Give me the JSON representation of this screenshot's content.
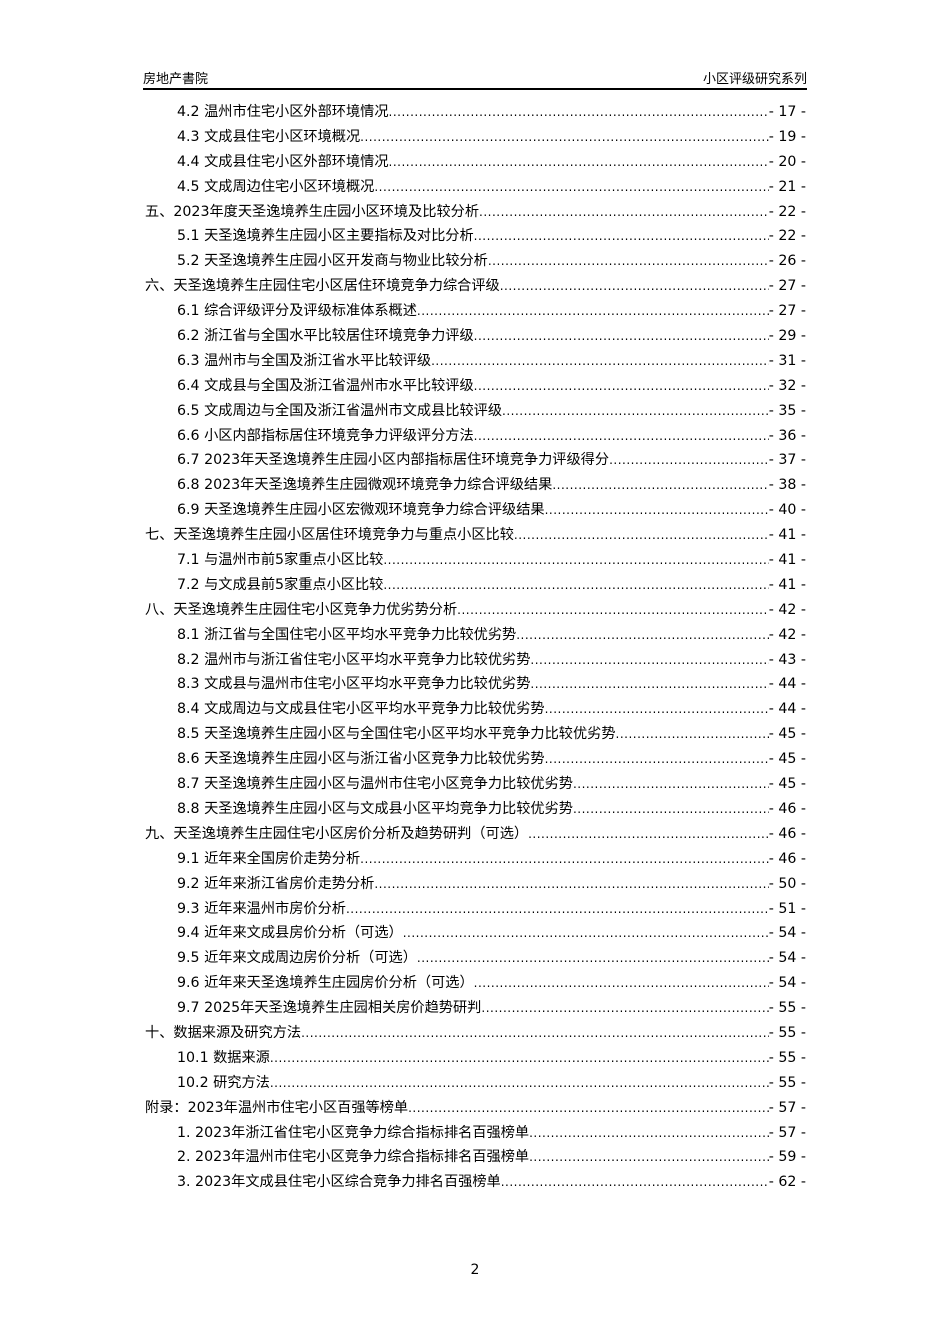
{
  "header": {
    "left": "房地产書院",
    "right": "小区评级研究系列"
  },
  "toc": [
    {
      "level": 2,
      "title": "4.2 温州市住宅小区外部环境情况",
      "page": "- 17 -"
    },
    {
      "level": 2,
      "title": "4.3 文成县住宅小区环境概况",
      "page": "- 19 -"
    },
    {
      "level": 2,
      "title": "4.4 文成县住宅小区外部环境情况",
      "page": "- 20 -"
    },
    {
      "level": 2,
      "title": "4.5 文成周边住宅小区环境概况",
      "page": "- 21 -"
    },
    {
      "level": 1,
      "title": "五、2023年度天圣逸境养生庄园小区环境及比较分析",
      "page": "- 22 -"
    },
    {
      "level": 2,
      "title": "5.1 天圣逸境养生庄园小区主要指标及对比分析",
      "page": "- 22 -"
    },
    {
      "level": 2,
      "title": "5.2 天圣逸境养生庄园小区开发商与物业比较分析",
      "page": "- 26 -"
    },
    {
      "level": 1,
      "title": "六、天圣逸境养生庄园住宅小区居住环境竞争力综合评级",
      "page": "- 27 -"
    },
    {
      "level": 2,
      "title": "6.1 综合评级评分及评级标准体系概述",
      "page": "- 27 -"
    },
    {
      "level": 2,
      "title": "6.2 浙江省与全国水平比较居住环境竞争力评级",
      "page": "- 29 -"
    },
    {
      "level": 2,
      "title": "6.3 温州市与全国及浙江省水平比较评级",
      "page": "- 31 -"
    },
    {
      "level": 2,
      "title": "6.4 文成县与全国及浙江省温州市水平比较评级",
      "page": "- 32 -"
    },
    {
      "level": 2,
      "title": "6.5 文成周边与全国及浙江省温州市文成县比较评级",
      "page": "- 35 -"
    },
    {
      "level": 2,
      "title": "6.6 小区内部指标居住环境竞争力评级评分方法",
      "page": "- 36 -"
    },
    {
      "level": 2,
      "title": "6.7 2023年天圣逸境养生庄园小区内部指标居住环境竞争力评级得分",
      "page": "- 37 -"
    },
    {
      "level": 2,
      "title": "6.8 2023年天圣逸境养生庄园微观环境竞争力综合评级结果",
      "page": "- 38 -"
    },
    {
      "level": 2,
      "title": "6.9 天圣逸境养生庄园小区宏微观环境竞争力综合评级结果",
      "page": "- 40 -"
    },
    {
      "level": 1,
      "title": "七、天圣逸境养生庄园小区居住环境竞争力与重点小区比较",
      "page": "- 41 -"
    },
    {
      "level": 2,
      "title": "7.1 与温州市前5家重点小区比较",
      "page": "- 41 -"
    },
    {
      "level": 2,
      "title": "7.2 与文成县前5家重点小区比较",
      "page": "- 41 -"
    },
    {
      "level": 1,
      "title": "八、天圣逸境养生庄园住宅小区竞争力优劣势分析",
      "page": "- 42 -"
    },
    {
      "level": 2,
      "title": "8.1 浙江省与全国住宅小区平均水平竞争力比较优劣势",
      "page": "- 42 -"
    },
    {
      "level": 2,
      "title": "8.2 温州市与浙江省住宅小区平均水平竞争力比较优劣势",
      "page": "- 43 -"
    },
    {
      "level": 2,
      "title": "8.3 文成县与温州市住宅小区平均水平竞争力比较优劣势",
      "page": "- 44 -"
    },
    {
      "level": 2,
      "title": "8.4 文成周边与文成县住宅小区平均水平竞争力比较优劣势",
      "page": "- 44 -"
    },
    {
      "level": 2,
      "title": "8.5 天圣逸境养生庄园小区与全国住宅小区平均水平竞争力比较优劣势",
      "page": "- 45 -"
    },
    {
      "level": 2,
      "title": "8.6 天圣逸境养生庄园小区与浙江省小区竞争力比较优劣势",
      "page": "- 45 -"
    },
    {
      "level": 2,
      "title": "8.7 天圣逸境养生庄园小区与温州市住宅小区竞争力比较优劣势",
      "page": "- 45 -"
    },
    {
      "level": 2,
      "title": "8.8 天圣逸境养生庄园小区与文成县小区平均竞争力比较优劣势",
      "page": "- 46 -"
    },
    {
      "level": 1,
      "title": "九、天圣逸境养生庄园住宅小区房价分析及趋势研判（可选）",
      "page": "- 46 -"
    },
    {
      "level": 2,
      "title": "9.1 近年来全国房价走势分析",
      "page": "- 46 -"
    },
    {
      "level": 2,
      "title": "9.2 近年来浙江省房价走势分析",
      "page": "- 50 -"
    },
    {
      "level": 2,
      "title": "9.3 近年来温州市房价分析",
      "page": "- 51 -"
    },
    {
      "level": 2,
      "title": "9.4 近年来文成县房价分析（可选）",
      "page": "- 54 -"
    },
    {
      "level": 2,
      "title": "9.5 近年来文成周边房价分析（可选）",
      "page": "- 54 -"
    },
    {
      "level": 2,
      "title": "9.6 近年来天圣逸境养生庄园房价分析（可选）",
      "page": "- 54 -"
    },
    {
      "level": 2,
      "title": "9.7 2025年天圣逸境养生庄园相关房价趋势研判",
      "page": "- 55 -"
    },
    {
      "level": 1,
      "title": "十、数据来源及研究方法",
      "page": "- 55 -"
    },
    {
      "level": 2,
      "title": "10.1 数据来源",
      "page": "- 55 -"
    },
    {
      "level": 2,
      "title": "10.2 研究方法",
      "page": "- 55 -"
    },
    {
      "level": 1,
      "title": "附录：2023年温州市住宅小区百强等榜单",
      "page": "- 57 -"
    },
    {
      "level": 2,
      "title": "1.  2023年浙江省住宅小区竞争力综合指标排名百强榜单",
      "page": "- 57 -"
    },
    {
      "level": 2,
      "title": "2.  2023年温州市住宅小区竞争力综合指标排名百强榜单",
      "page": "- 59 -"
    },
    {
      "level": 2,
      "title": "3.  2023年文成县住宅小区综合竞争力排名百强榜单",
      "page": "- 62 -"
    }
  ],
  "footer": {
    "page_number": "2"
  }
}
